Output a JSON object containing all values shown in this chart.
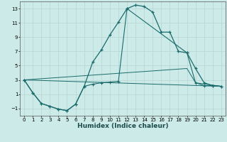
{
  "xlabel": "Humidex (Indice chaleur)",
  "bg_color": "#cceae8",
  "grid_color": "#b8d8d6",
  "line_color": "#1a6b6b",
  "xlim": [
    -0.5,
    23.5
  ],
  "ylim": [
    -2.0,
    14.0
  ],
  "xtick_labels": [
    "0",
    "1",
    "2",
    "3",
    "4",
    "5",
    "6",
    "7",
    "8",
    "9",
    "10",
    "11",
    "12",
    "13",
    "14",
    "15",
    "16",
    "17",
    "18",
    "19",
    "20",
    "21",
    "22",
    "23"
  ],
  "xticks": [
    0,
    1,
    2,
    3,
    4,
    5,
    6,
    7,
    8,
    9,
    10,
    11,
    12,
    13,
    14,
    15,
    16,
    17,
    18,
    19,
    20,
    21,
    22,
    23
  ],
  "yticks": [
    -1,
    1,
    3,
    5,
    7,
    9,
    11,
    13
  ],
  "series1_x": [
    0,
    1,
    2,
    3,
    4,
    5,
    6,
    7,
    8,
    9,
    10,
    11,
    12,
    13,
    14,
    15,
    16,
    17,
    18,
    19,
    20,
    21,
    22,
    23
  ],
  "series1_y": [
    3.0,
    1.2,
    -0.3,
    -0.7,
    -1.1,
    -1.3,
    -0.4,
    2.1,
    5.5,
    7.2,
    9.3,
    11.1,
    13.0,
    13.5,
    13.3,
    12.5,
    9.7,
    9.7,
    7.0,
    6.8,
    4.6,
    2.6,
    2.2,
    2.1
  ],
  "series2_x": [
    0,
    1,
    2,
    3,
    4,
    5,
    6,
    7,
    8,
    9,
    10,
    11,
    12,
    19,
    20,
    21,
    22,
    23
  ],
  "series2_y": [
    3.0,
    1.2,
    -0.3,
    -0.7,
    -1.1,
    -1.3,
    -0.4,
    2.1,
    2.4,
    2.6,
    2.7,
    2.8,
    13.0,
    6.8,
    2.6,
    2.2,
    2.2,
    2.1
  ],
  "series3_x": [
    0,
    23
  ],
  "series3_y": [
    3.0,
    2.1
  ],
  "series4_x": [
    0,
    19,
    20,
    23
  ],
  "series4_y": [
    3.0,
    4.6,
    2.6,
    2.1
  ]
}
